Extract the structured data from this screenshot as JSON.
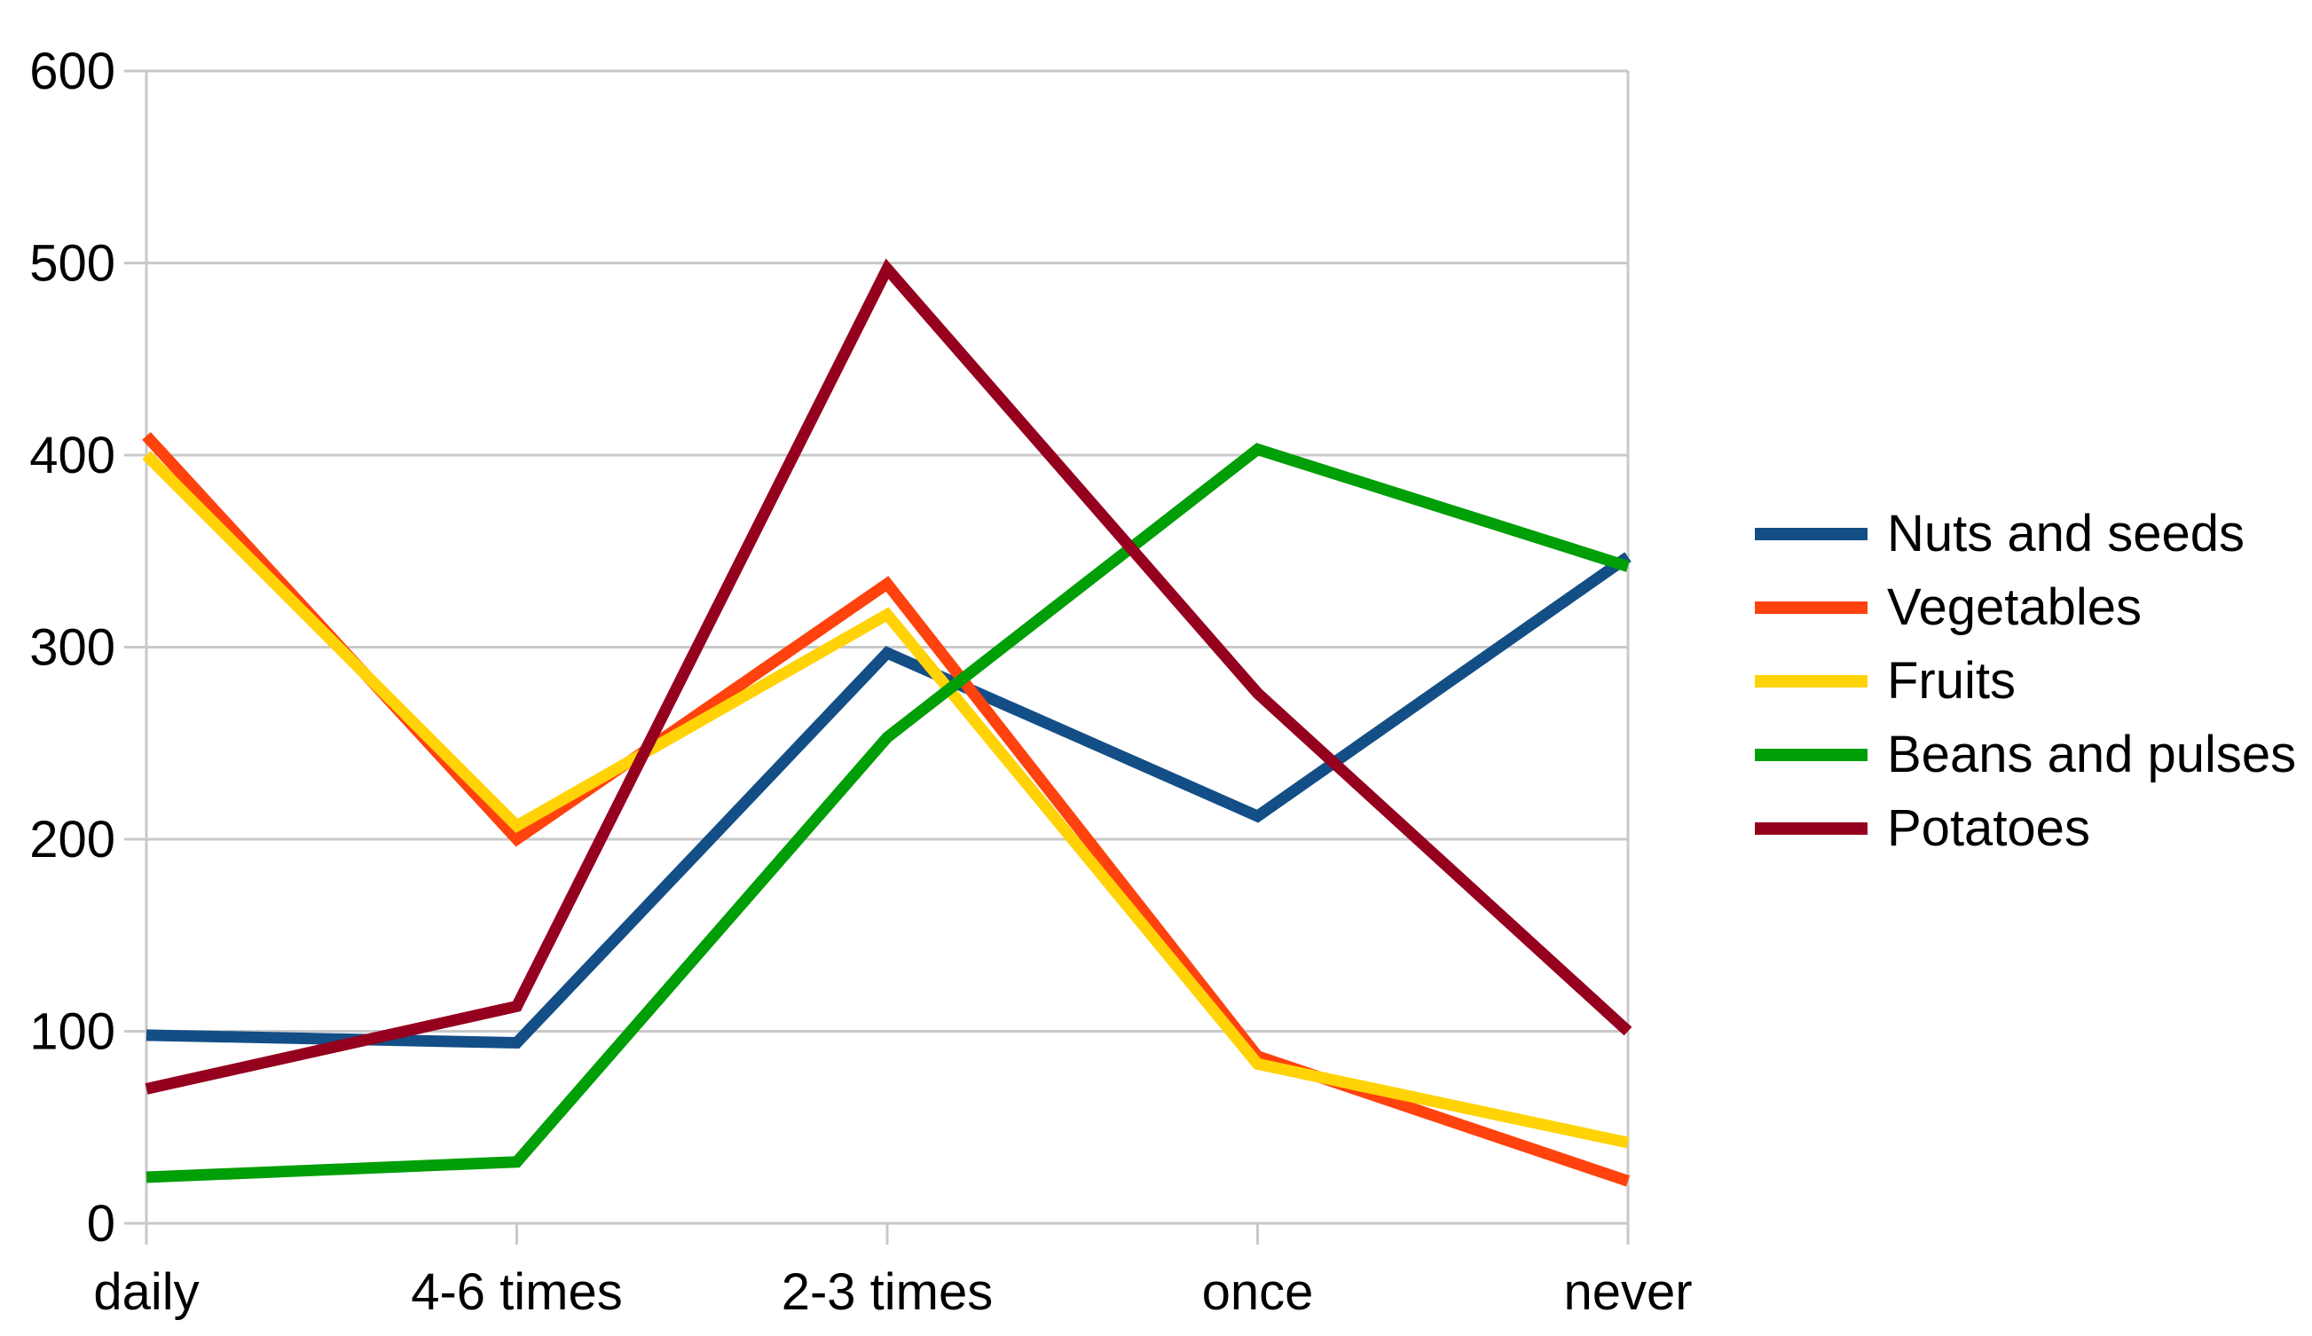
{
  "chart_data": {
    "type": "line",
    "categories": [
      "daily",
      "4-6 times",
      "2-3 times",
      "once",
      "never"
    ],
    "series": [
      {
        "name": "Nuts and seeds",
        "color": "#134E87",
        "values": [
          98,
          94,
          297,
          212,
          347
        ]
      },
      {
        "name": "Vegetables",
        "color": "#FF420E",
        "values": [
          410,
          200,
          333,
          87,
          22
        ]
      },
      {
        "name": "Fruits",
        "color": "#FFD306",
        "values": [
          400,
          207,
          317,
          83,
          42
        ]
      },
      {
        "name": "Beans and pulses",
        "color": "#009E07",
        "values": [
          24,
          32,
          253,
          403,
          342
        ]
      },
      {
        "name": "Potatoes",
        "color": "#95001F",
        "values": [
          70,
          113,
          497,
          276,
          100
        ]
      }
    ],
    "title": "",
    "xlabel": "",
    "ylabel": "",
    "ylim": [
      0,
      600
    ],
    "y_ticks": [
      0,
      100,
      200,
      300,
      400,
      500,
      600
    ],
    "grid": true,
    "legend_position": "right",
    "line_width": 13
  },
  "colors": {
    "grid": "#C9C9C9",
    "text": "#000000",
    "background": "#FFFFFF"
  }
}
